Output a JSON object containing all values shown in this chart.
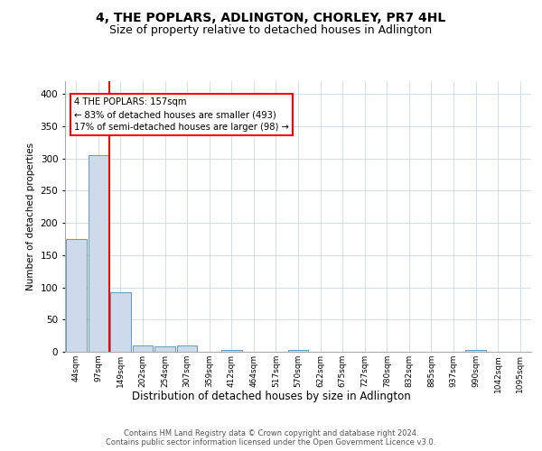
{
  "title": "4, THE POPLARS, ADLINGTON, CHORLEY, PR7 4HL",
  "subtitle": "Size of property relative to detached houses in Adlington",
  "xlabel": "Distribution of detached houses by size in Adlington",
  "ylabel": "Number of detached properties",
  "bar_labels": [
    "44sqm",
    "97sqm",
    "149sqm",
    "202sqm",
    "254sqm",
    "307sqm",
    "359sqm",
    "412sqm",
    "464sqm",
    "517sqm",
    "570sqm",
    "622sqm",
    "675sqm",
    "727sqm",
    "780sqm",
    "832sqm",
    "885sqm",
    "937sqm",
    "990sqm",
    "1042sqm",
    "1095sqm"
  ],
  "bar_values": [
    175,
    305,
    92,
    10,
    8,
    10,
    0,
    3,
    0,
    0,
    3,
    0,
    0,
    0,
    0,
    0,
    0,
    0,
    3,
    0,
    0
  ],
  "bar_color": "#ccdaea",
  "bar_edge_color": "#6699bb",
  "ylim": [
    0,
    420
  ],
  "yticks": [
    0,
    50,
    100,
    150,
    200,
    250,
    300,
    350,
    400
  ],
  "red_line_x": 1.5,
  "annotation_line1": "4 THE POPLARS: 157sqm",
  "annotation_line2": "← 83% of detached houses are smaller (493)",
  "annotation_line3": "17% of semi-detached houses are larger (98) →",
  "footer_line1": "Contains HM Land Registry data © Crown copyright and database right 2024.",
  "footer_line2": "Contains public sector information licensed under the Open Government Licence v3.0.",
  "background_color": "#ffffff",
  "grid_color": "#ccd8e4",
  "title_fontsize": 10,
  "subtitle_fontsize": 9,
  "bar_width": 0.92
}
